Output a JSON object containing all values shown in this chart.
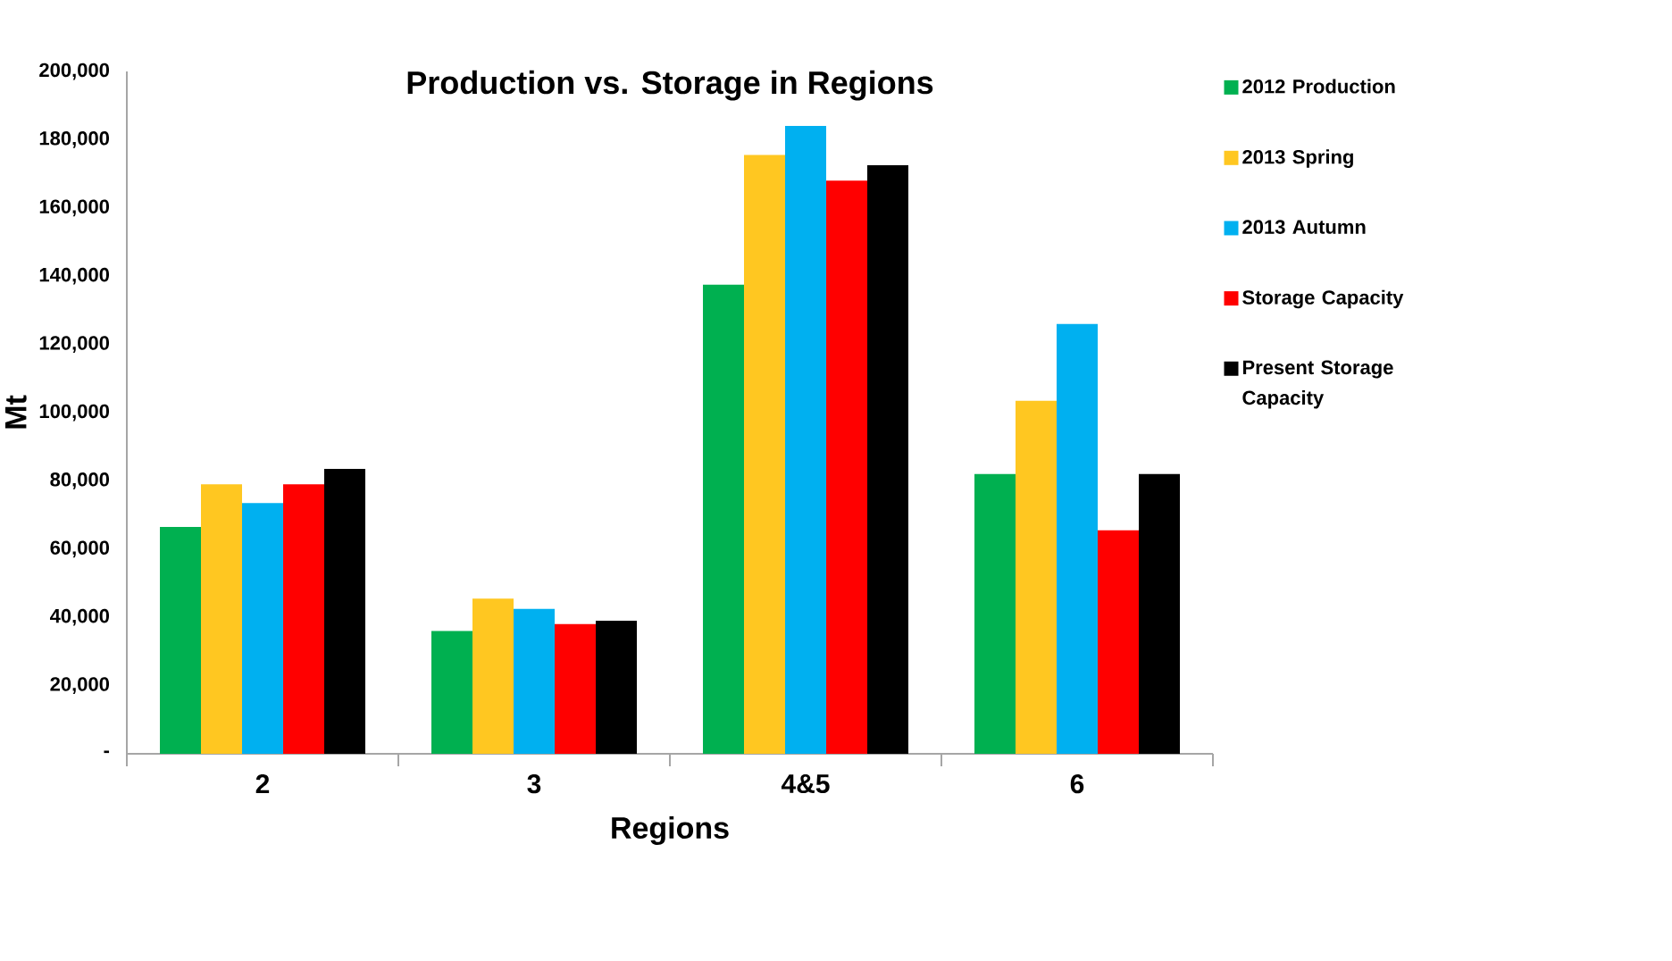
{
  "chart_data": {
    "type": "bar",
    "title": "Production vs. Storage in Regions",
    "xlabel": "Regions",
    "ylabel": "Mt",
    "categories": [
      "2",
      "3",
      "4&5",
      "6"
    ],
    "series": [
      {
        "name": "2012 Production",
        "color": "#00b050",
        "values": [
          66500,
          36000,
          137500,
          82000
        ]
      },
      {
        "name": "2013 Spring",
        "color": "#ffc721",
        "values": [
          79000,
          45500,
          175500,
          103500
        ]
      },
      {
        "name": "2013 Autumn",
        "color": "#00b0f0",
        "values": [
          73500,
          42500,
          184000,
          126000
        ]
      },
      {
        "name": "Storage Capacity",
        "color": "#ff0000",
        "values": [
          79000,
          38000,
          168000,
          65500
        ]
      },
      {
        "name": "Present Storage Capacity",
        "color": "#000000",
        "values": [
          83500,
          39000,
          172500,
          82000
        ]
      }
    ],
    "ylim": [
      0,
      200000
    ],
    "yticks": [
      {
        "value": 0,
        "label": "-"
      },
      {
        "value": 20000,
        "label": "20,000"
      },
      {
        "value": 40000,
        "label": "40,000"
      },
      {
        "value": 60000,
        "label": "60,000"
      },
      {
        "value": 80000,
        "label": "80,000"
      },
      {
        "value": 100000,
        "label": "100,000"
      },
      {
        "value": 120000,
        "label": "120,000"
      },
      {
        "value": 140000,
        "label": "140,000"
      },
      {
        "value": 160000,
        "label": "160,000"
      },
      {
        "value": 180000,
        "label": "180,000"
      },
      {
        "value": 200000,
        "label": "200,000"
      }
    ],
    "legend": "right"
  }
}
